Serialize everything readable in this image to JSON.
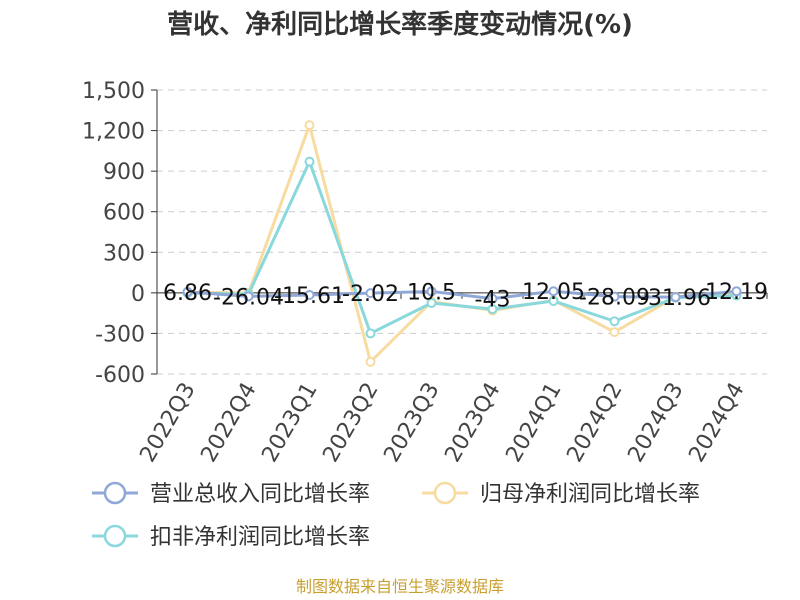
{
  "chart_data": {
    "type": "line",
    "title": "营收、净利同比增长率季度变动情况(%)",
    "source": "制图数据来自恒生聚源数据库",
    "categories": [
      "2022Q3",
      "2022Q4",
      "2023Q1",
      "2023Q2",
      "2023Q3",
      "2023Q4",
      "2024Q1",
      "2024Q2",
      "2024Q3",
      "2024Q4"
    ],
    "ylim": [
      -600,
      1500
    ],
    "yticks": [
      -600,
      -300,
      0,
      300,
      600,
      900,
      1200,
      1500
    ],
    "ytick_labels": [
      "-600",
      "-300",
      "0",
      "300",
      "600",
      "900",
      "1,200",
      "1,500"
    ],
    "grid": true,
    "legend_position": "bottom",
    "series": [
      {
        "name": "营业总收入同比增长率",
        "color": "#8fa8d8",
        "values": [
          6.86,
          -26.04,
          -15.61,
          -2.02,
          10.5,
          -43,
          12.05,
          -28.09,
          -31.96,
          12.19
        ],
        "labels": [
          "6.86",
          "-26.04",
          "-15.61",
          "-2.02",
          "10.5",
          "-43",
          "12.05",
          "-28.09",
          "-31.96",
          "12.19"
        ]
      },
      {
        "name": "归母净利润同比增长率",
        "color": "#f8dba0",
        "values": [
          5,
          0,
          1240,
          -510,
          -65,
          -130,
          -55,
          -290,
          -30,
          -10
        ]
      },
      {
        "name": "扣非净利润同比增长率",
        "color": "#88d8dc",
        "values": [
          0,
          -10,
          970,
          -300,
          -75,
          -120,
          -60,
          -210,
          -35,
          -20
        ]
      }
    ]
  }
}
